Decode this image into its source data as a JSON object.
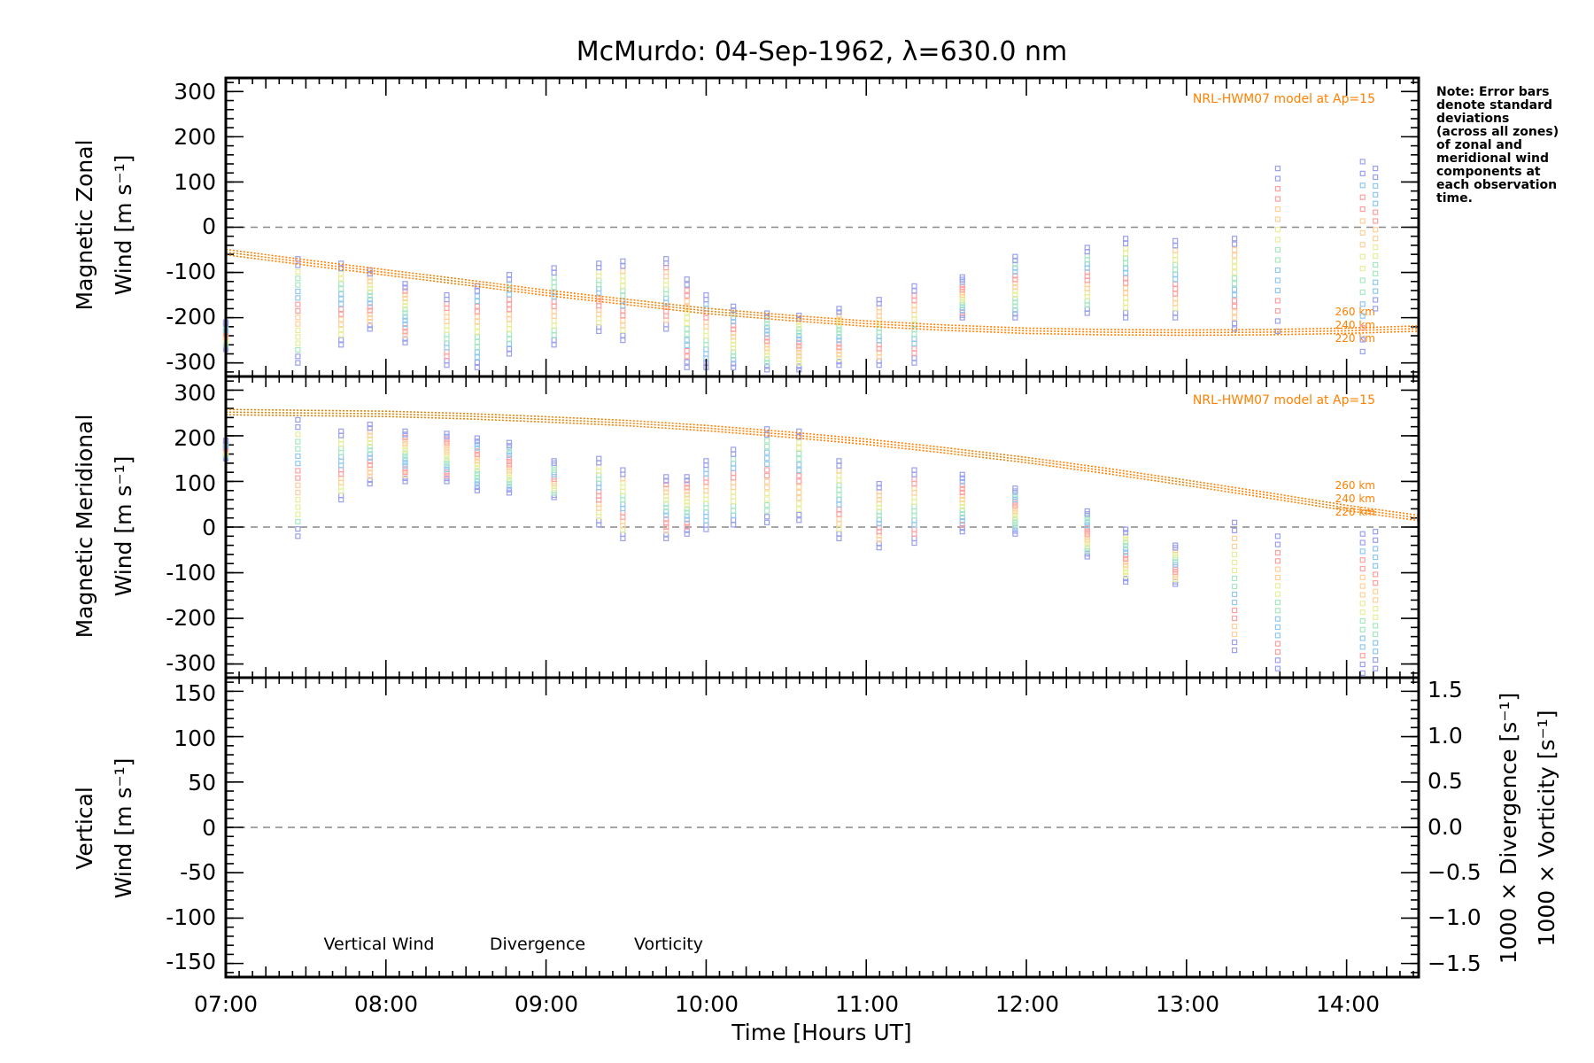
{
  "chart_data": {
    "type": "scatter",
    "title": "McMurdo: 04-Sep-1962, λ=630.0 nm",
    "note": [
      "Note: Error bars",
      "denote standard",
      "deviations",
      "(across all zones)",
      "of zonal and",
      "meridional wind",
      "components at",
      "each observation",
      "time."
    ],
    "xlabel": "Time [Hours UT]",
    "xlim": [
      7.0,
      14.45
    ],
    "xticks": [
      "07:00",
      "08:00",
      "09:00",
      "10:00",
      "11:00",
      "12:00",
      "13:00",
      "14:00"
    ],
    "obs_times": [
      7.0,
      7.45,
      7.72,
      7.9,
      8.12,
      8.38,
      8.57,
      8.77,
      9.05,
      9.33,
      9.48,
      9.75,
      9.88,
      10.0,
      10.17,
      10.38,
      10.58,
      10.83,
      11.08,
      11.3,
      11.6,
      11.93,
      12.38,
      12.62,
      12.93,
      13.3,
      13.57,
      14.1,
      14.18
    ],
    "colors": {
      "model": "#ff8000",
      "vertical": "#66bb33",
      "divergence": "#55aadd",
      "vorticity": "#ff4488",
      "zones": [
        "#9aa0ee",
        "#90c8f0",
        "#a6e8c0",
        "#e8ee9a",
        "#ffd09a",
        "#ffa0a0"
      ]
    },
    "panels": [
      {
        "id": "zonal",
        "ylabel_line1": "Magnetic Zonal",
        "ylabel_line2": "Wind [m s⁻¹]",
        "ylim": [
          -330,
          330
        ],
        "yticks": [
          300,
          200,
          100,
          0,
          -100,
          -200,
          -300
        ],
        "model_label": "NRL-HWM07 model at Ap=15",
        "altitude_labels": [
          "260 km",
          "240 km",
          "220 km"
        ],
        "model": {
          "x": [
            7.0,
            7.5,
            8.0,
            8.5,
            9.0,
            9.5,
            10.0,
            10.5,
            11.0,
            11.5,
            12.0,
            12.5,
            13.0,
            13.5,
            14.0,
            14.45
          ],
          "y": [
            -55,
            -78,
            -100,
            -122,
            -145,
            -165,
            -185,
            -200,
            -213,
            -222,
            -229,
            -232,
            -233,
            -232,
            -229,
            -224
          ]
        },
        "obs": {
          "low": [
            -270,
            -300,
            -260,
            -225,
            -255,
            -305,
            -310,
            -280,
            -260,
            -230,
            -250,
            -225,
            -310,
            -310,
            -310,
            -315,
            -315,
            -305,
            -305,
            -300,
            -200,
            -200,
            -190,
            -200,
            -200,
            -225,
            -230,
            -275,
            -180
          ],
          "high": [
            -210,
            -70,
            -80,
            -95,
            -125,
            -150,
            -130,
            -105,
            -90,
            -80,
            -75,
            -70,
            -115,
            -150,
            -175,
            -190,
            -195,
            -180,
            -160,
            -130,
            -110,
            -65,
            -45,
            -25,
            -30,
            -25,
            130,
            145,
            130
          ]
        }
      },
      {
        "id": "meridional",
        "ylabel_line1": "Magnetic Meridional",
        "ylabel_line2": "Wind [m s⁻¹]",
        "ylim": [
          -330,
          330
        ],
        "yticks": [
          300,
          200,
          100,
          0,
          -100,
          -200,
          -300
        ],
        "model_label": "NRL-HWM07 model at Ap=15",
        "altitude_labels": [
          "260 km",
          "240 km",
          "220 km"
        ],
        "model": {
          "x": [
            7.0,
            7.5,
            8.0,
            8.5,
            9.0,
            9.5,
            10.0,
            10.5,
            11.0,
            11.5,
            12.0,
            12.5,
            13.0,
            13.5,
            14.0,
            14.45
          ],
          "y": [
            252,
            250,
            248,
            243,
            236,
            228,
            217,
            203,
            187,
            168,
            147,
            123,
            97,
            70,
            42,
            20
          ]
        },
        "obs": {
          "low": [
            150,
            -20,
            60,
            95,
            100,
            100,
            80,
            75,
            65,
            5,
            -25,
            -25,
            -15,
            -5,
            5,
            10,
            15,
            -25,
            -45,
            -35,
            -10,
            -15,
            -65,
            -120,
            -125,
            -270,
            -310,
            -320,
            -310
          ],
          "high": [
            190,
            235,
            210,
            225,
            210,
            205,
            195,
            185,
            145,
            150,
            125,
            110,
            110,
            145,
            170,
            215,
            210,
            145,
            95,
            125,
            115,
            85,
            35,
            -5,
            -40,
            10,
            -20,
            -15,
            -10
          ]
        }
      },
      {
        "id": "vertical",
        "ylabel_line1": "Vertical",
        "ylabel_line2": "Wind [m s⁻¹]",
        "ylim": [
          -165,
          165
        ],
        "yticks": [
          150,
          100,
          50,
          0,
          -50,
          -100,
          -150
        ],
        "y2_ticks": [
          "1.5",
          "1.0",
          "0.5",
          "0.0",
          "−0.5",
          "−1.0",
          "−1.5"
        ],
        "y2_values": [
          1.5,
          1.0,
          0.5,
          0.0,
          -0.5,
          -1.0,
          -1.5
        ],
        "y2_label_divergence": "1000 × Divergence [s⁻¹]",
        "y2_label_vorticity": "1000 × Vorticity [s⁻¹]",
        "legend": [
          "Vertical Wind",
          "Divergence",
          "Vorticity"
        ]
      }
    ]
  }
}
